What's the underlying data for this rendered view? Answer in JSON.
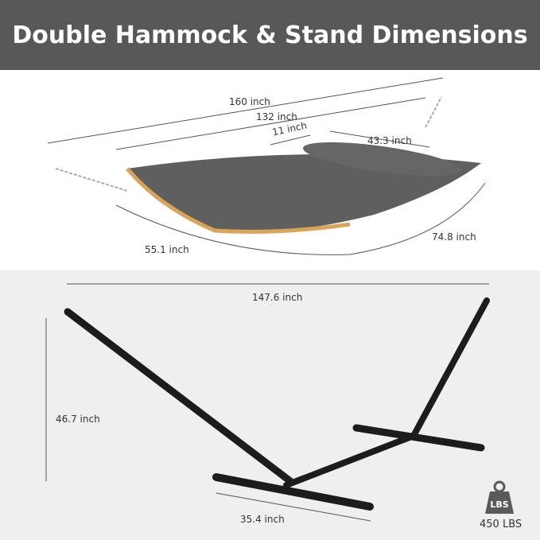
{
  "title": "Double Hammock & Stand Dimensions",
  "hammock": {
    "length_total": "160 inch",
    "length_bed": "132 inch",
    "pillow_depth": "11 inch",
    "pillow_width": "43.3 inch",
    "width_left": "55.1 inch",
    "width_right": "74.8 inch"
  },
  "stand": {
    "length": "147.6 inch",
    "height": "46.7 inch",
    "base_width": "35.4 inch"
  },
  "weight": {
    "icon_text": "LBS",
    "capacity": "450 LBS"
  },
  "colors": {
    "header": "#58585a",
    "fabric": "#5f5f60",
    "wood": "#d9a55a",
    "frame": "#1c1c1c"
  }
}
